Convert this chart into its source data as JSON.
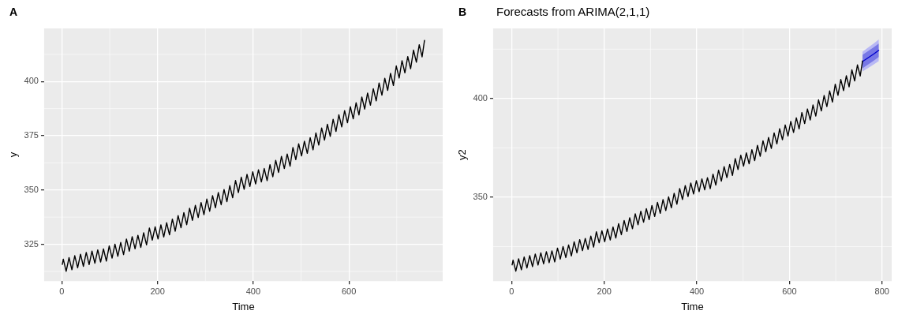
{
  "chart_data": [
    {
      "type": "line",
      "annotations": [
        "A"
      ],
      "xlabel": "Time",
      "ylabel": "y",
      "xlim": [
        -37,
        796
      ],
      "ylim": [
        308,
        424.5
      ],
      "xticks": [
        0,
        200,
        400,
        600
      ],
      "yticks": [
        325,
        350,
        375,
        400
      ],
      "grid": true,
      "legend": false,
      "series": [
        {
          "color": "#000000",
          "x": [
            1,
            3,
            9,
            15,
            21,
            27,
            33,
            39,
            45,
            51,
            57,
            63,
            69,
            75,
            81,
            87,
            93,
            99,
            105,
            111,
            117,
            123,
            129,
            135,
            141,
            147,
            153,
            159,
            165,
            171,
            177,
            183,
            189,
            195,
            201,
            207,
            213,
            219,
            225,
            231,
            237,
            243,
            249,
            255,
            261,
            267,
            273,
            279,
            285,
            291,
            297,
            303,
            309,
            315,
            321,
            327,
            333,
            339,
            345,
            351,
            357,
            363,
            369,
            375,
            381,
            387,
            393,
            399,
            405,
            411,
            417,
            423,
            429,
            435,
            441,
            447,
            453,
            459,
            465,
            471,
            477,
            483,
            489,
            495,
            501,
            507,
            513,
            519,
            525,
            531,
            537,
            543,
            549,
            555,
            561,
            567,
            573,
            579,
            585,
            591,
            597,
            603,
            609,
            615,
            621,
            627,
            633,
            639,
            645,
            651,
            657,
            663,
            669,
            675,
            681,
            687,
            693,
            699,
            705,
            711,
            717,
            723,
            729,
            735,
            741,
            747,
            753,
            758
          ],
          "values": [
            315.7,
            318.1,
            312.5,
            318.8,
            313.2,
            319.7,
            314.1,
            320.4,
            314.8,
            321.2,
            315.6,
            321.8,
            316.2,
            322.4,
            316.8,
            322.8,
            317.2,
            324.2,
            318.6,
            325.0,
            319.4,
            325.8,
            320.2,
            327.4,
            321.8,
            328.5,
            322.9,
            329.1,
            323.5,
            330.3,
            324.7,
            332.5,
            326.9,
            333.0,
            327.4,
            333.9,
            328.3,
            334.9,
            329.3,
            336.6,
            331.0,
            338.2,
            332.6,
            339.6,
            334.0,
            341.6,
            336.0,
            342.9,
            337.3,
            344.2,
            338.6,
            345.8,
            340.2,
            347.4,
            341.8,
            348.8,
            343.2,
            350.2,
            344.6,
            352.0,
            346.4,
            354.4,
            348.8,
            355.9,
            350.3,
            357.2,
            351.6,
            358.4,
            352.8,
            359.3,
            353.7,
            359.9,
            354.3,
            361.7,
            356.1,
            363.7,
            358.1,
            365.5,
            359.9,
            366.6,
            361.0,
            369.6,
            364.0,
            371.3,
            365.7,
            372.5,
            366.9,
            374.1,
            368.5,
            376.3,
            370.7,
            378.6,
            373.0,
            380.3,
            374.7,
            382.6,
            377.0,
            384.7,
            379.1,
            386.6,
            381.0,
            388.4,
            382.8,
            390.2,
            384.6,
            392.9,
            387.3,
            394.7,
            389.1,
            396.7,
            391.1,
            399.3,
            393.7,
            401.5,
            395.9,
            403.8,
            398.2,
            407.2,
            401.6,
            409.6,
            404.0,
            411.5,
            405.9,
            414.5,
            408.9,
            417.0,
            411.4,
            419.0
          ]
        }
      ]
    },
    {
      "type": "line",
      "title": "Forecasts from ARIMA(2,1,1)",
      "annotations": [
        "B"
      ],
      "xlabel": "Time",
      "ylabel": "y2",
      "xlim": [
        -40,
        821
      ],
      "ylim": [
        307.5,
        435.5
      ],
      "xticks": [
        0,
        200,
        400,
        600,
        800
      ],
      "yticks": [
        350,
        400
      ],
      "grid": true,
      "legend": false,
      "series": [
        {
          "color": "#000000",
          "x": [
            1,
            3,
            9,
            15,
            21,
            27,
            33,
            39,
            45,
            51,
            57,
            63,
            69,
            75,
            81,
            87,
            93,
            99,
            105,
            111,
            117,
            123,
            129,
            135,
            141,
            147,
            153,
            159,
            165,
            171,
            177,
            183,
            189,
            195,
            201,
            207,
            213,
            219,
            225,
            231,
            237,
            243,
            249,
            255,
            261,
            267,
            273,
            279,
            285,
            291,
            297,
            303,
            309,
            315,
            321,
            327,
            333,
            339,
            345,
            351,
            357,
            363,
            369,
            375,
            381,
            387,
            393,
            399,
            405,
            411,
            417,
            423,
            429,
            435,
            441,
            447,
            453,
            459,
            465,
            471,
            477,
            483,
            489,
            495,
            501,
            507,
            513,
            519,
            525,
            531,
            537,
            543,
            549,
            555,
            561,
            567,
            573,
            579,
            585,
            591,
            597,
            603,
            609,
            615,
            621,
            627,
            633,
            639,
            645,
            651,
            657,
            663,
            669,
            675,
            681,
            687,
            693,
            699,
            705,
            711,
            717,
            723,
            729,
            735,
            741,
            747,
            753,
            758
          ],
          "values": [
            315.7,
            318.1,
            312.5,
            318.8,
            313.2,
            319.7,
            314.1,
            320.4,
            314.8,
            321.2,
            315.6,
            321.8,
            316.2,
            322.4,
            316.8,
            322.8,
            317.2,
            324.2,
            318.6,
            325.0,
            319.4,
            325.8,
            320.2,
            327.4,
            321.8,
            328.5,
            322.9,
            329.1,
            323.5,
            330.3,
            324.7,
            332.5,
            326.9,
            333.0,
            327.4,
            333.9,
            328.3,
            334.9,
            329.3,
            336.6,
            331.0,
            338.2,
            332.6,
            339.6,
            334.0,
            341.6,
            336.0,
            342.9,
            337.3,
            344.2,
            338.6,
            345.8,
            340.2,
            347.4,
            341.8,
            348.8,
            343.2,
            350.2,
            344.6,
            352.0,
            346.4,
            354.4,
            348.8,
            355.9,
            350.3,
            357.2,
            351.6,
            358.4,
            352.8,
            359.3,
            353.7,
            359.9,
            354.3,
            361.7,
            356.1,
            363.7,
            358.1,
            365.5,
            359.9,
            366.6,
            361.0,
            369.6,
            364.0,
            371.3,
            365.7,
            372.5,
            366.9,
            374.1,
            368.5,
            376.3,
            370.7,
            378.6,
            373.0,
            380.3,
            374.7,
            382.6,
            377.0,
            384.7,
            379.1,
            386.6,
            381.0,
            388.4,
            382.8,
            390.2,
            384.6,
            392.9,
            387.3,
            394.7,
            389.1,
            396.7,
            391.1,
            399.3,
            393.7,
            401.5,
            395.9,
            403.8,
            398.2,
            407.2,
            401.6,
            409.6,
            404.0,
            411.5,
            405.9,
            414.5,
            408.9,
            417.0,
            411.4,
            419.0
          ]
        },
        {
          "color": "#b8b8f4",
          "x": [
            758,
            770,
            782,
            793
          ],
          "values": [
            null,
            null,
            null,
            null
          ],
          "lower": [
            413.7,
            415.4,
            417.2,
            418.9
          ],
          "upper": [
            423.7,
            425.8,
            427.8,
            429.9
          ]
        },
        {
          "color": "#0000cc",
          "x": [
            758,
            770,
            782,
            793
          ],
          "values": [
            418.7,
            420.6,
            422.5,
            424.4
          ],
          "lower": [
            415.3,
            417.2,
            419.1,
            421.0
          ],
          "upper": [
            422.1,
            424.0,
            425.9,
            427.8
          ]
        }
      ]
    }
  ]
}
